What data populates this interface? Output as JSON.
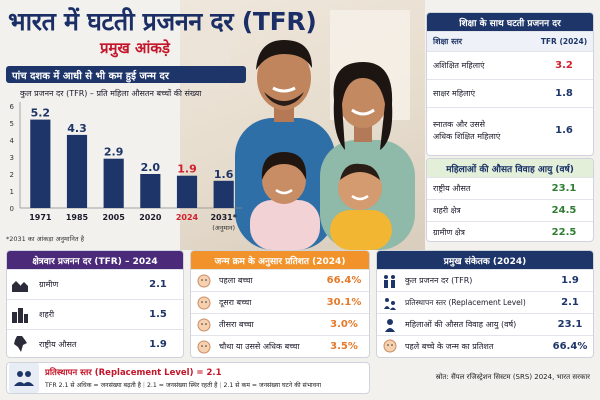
{
  "header": {
    "title": "भारत में घटती प्रजनन दर (TFR)",
    "subtitle": "प्रमुख आंकड़े"
  },
  "trend": {
    "banner": "पांच दशक में आधी से भी कम हुई जन्म दर",
    "subtitle": "कुल प्रजनन दर (TFR) – प्रति महिला औसतन बच्चों की संख्या",
    "note": "*2031 का आंकड़ा अनुमानित है",
    "projection_note": "(अनुमान)"
  },
  "chart_data": {
    "type": "bar",
    "title": "कुल प्रजनन दर (TFR) – प्रति महिला औसतन बच्चों की संख्या",
    "categories": [
      "1971",
      "1985",
      "2005",
      "2020",
      "2024",
      "2031*"
    ],
    "values": [
      5.2,
      4.3,
      2.9,
      2.0,
      1.9,
      1.6
    ],
    "value_labels": [
      "5.2",
      "4.3",
      "2.9",
      "2.0",
      "1.9",
      "1.6"
    ],
    "ylim": [
      0,
      6
    ],
    "yticks": [
      "0",
      "1",
      "2",
      "3",
      "4",
      "5",
      "6"
    ],
    "grid": false,
    "colors": {
      "bar": "#1d3568",
      "highlight_bar": "#1d3568",
      "highlight_label": "#d0202e"
    },
    "highlight_category": "2024"
  },
  "education": {
    "title": "शिक्षा के साथ घटती प्रजनन दर",
    "col_label": "शिक्षा स्तर",
    "col_value": "TFR (2024)",
    "rows": [
      {
        "label": "अशिक्षित महिलाएं",
        "value": "3.2",
        "color": "#d0202e"
      },
      {
        "label": "साक्षर महिलाएं",
        "value": "1.8",
        "color": "#1d3568"
      },
      {
        "label_line1": "स्नातक और उससे",
        "label_line2": "अधिक शिक्षित महिलाएं",
        "value": "1.6",
        "color": "#1d3568"
      }
    ]
  },
  "marriage": {
    "title": "महिलाओं की औसत विवाह आयु (वर्ष)",
    "rows": [
      {
        "label": "राष्ट्रीय औसत",
        "value": "23.1"
      },
      {
        "label": "शहरी क्षेत्र",
        "value": "24.5"
      },
      {
        "label": "ग्रामीण क्षेत्र",
        "value": "22.5"
      }
    ]
  },
  "region": {
    "title": "क्षेत्रवार प्रजनन दर (TFR) – 2024",
    "rows": [
      {
        "label": "ग्रामीण",
        "value": "2.1",
        "icon": "village-icon"
      },
      {
        "label": "शहरी",
        "value": "1.5",
        "icon": "city-icon"
      },
      {
        "label": "राष्ट्रीय औसत",
        "value": "1.9",
        "icon": "india-map-icon"
      }
    ]
  },
  "birth_order": {
    "title": "जन्म क्रम के अनुसार प्रतिशत (2024)",
    "rows": [
      {
        "label": "पहला बच्चा",
        "value": "66.4%"
      },
      {
        "label": "दूसरा बच्चा",
        "value": "30.1%"
      },
      {
        "label": "तीसरा बच्चा",
        "value": "3.0%"
      },
      {
        "label": "चौथा या उससे अधिक बच्चा",
        "value": "3.5%"
      }
    ]
  },
  "indicators": {
    "title": "प्रमुख संकेतक (2024)",
    "rows": [
      {
        "label": "कुल प्रजनन दर (TFR)",
        "value": "1.9",
        "icon": "family-icon"
      },
      {
        "label": "प्रतिस्थापन स्तर (Replacement Level)",
        "value": "2.1",
        "icon": "replacement-icon"
      },
      {
        "label": "महिलाओं की औसत विवाह आयु (वर्ष)",
        "value": "23.1",
        "icon": "woman-icon"
      },
      {
        "label": "पहले बच्चे के जन्म का प्रतिशत",
        "value": "66.4%",
        "icon": "baby-icon"
      }
    ]
  },
  "footer": {
    "replacement_title": "प्रतिस्थापन स्तर (Replacement Level) = 2.1",
    "replacement_items": [
      "TFR 2.1 से अधिक = जनसंख्या बढ़ती है",
      "2.1 = जनसंख्या स्थिर रहती है",
      "2.1 से कम = जनसंख्या घटने की संभावना"
    ],
    "source": "स्रोत: सैंपल रजिस्ट्रेशन सिस्टम (SRS) 2024, भारत सरकार"
  }
}
